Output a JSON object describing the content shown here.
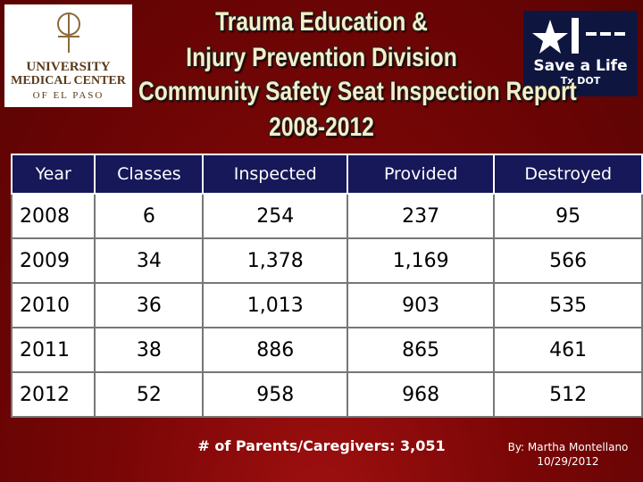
{
  "logo_left": {
    "line1": "UNIVERSITY",
    "line2": "MEDICAL CENTER",
    "line3": "OF EL PASO"
  },
  "logo_right": {
    "line1": "Save a Life",
    "line2": "Tx DOT"
  },
  "header": {
    "title": [
      "Trauma Education &",
      "Injury Prevention Division",
      "Community Safety Seat Inspection Report",
      "2008-2012"
    ]
  },
  "table": {
    "columns": [
      "Year",
      "Classes",
      "Inspected",
      "Provided",
      "Destroyed"
    ],
    "rows": [
      [
        "2008",
        "6",
        "254",
        "237",
        "95"
      ],
      [
        "2009",
        "34",
        "1,378",
        "1,169",
        "566"
      ],
      [
        "2010",
        "36",
        "1,013",
        "903",
        "535"
      ],
      [
        "2011",
        "38",
        "886",
        "865",
        "461"
      ],
      [
        "2012",
        "52",
        "958",
        "968",
        "512"
      ]
    ]
  },
  "footer": {
    "parents": "# of Parents/Caregivers: 3,051",
    "author": "By: Martha Montellano",
    "date": "10/29/2012"
  }
}
